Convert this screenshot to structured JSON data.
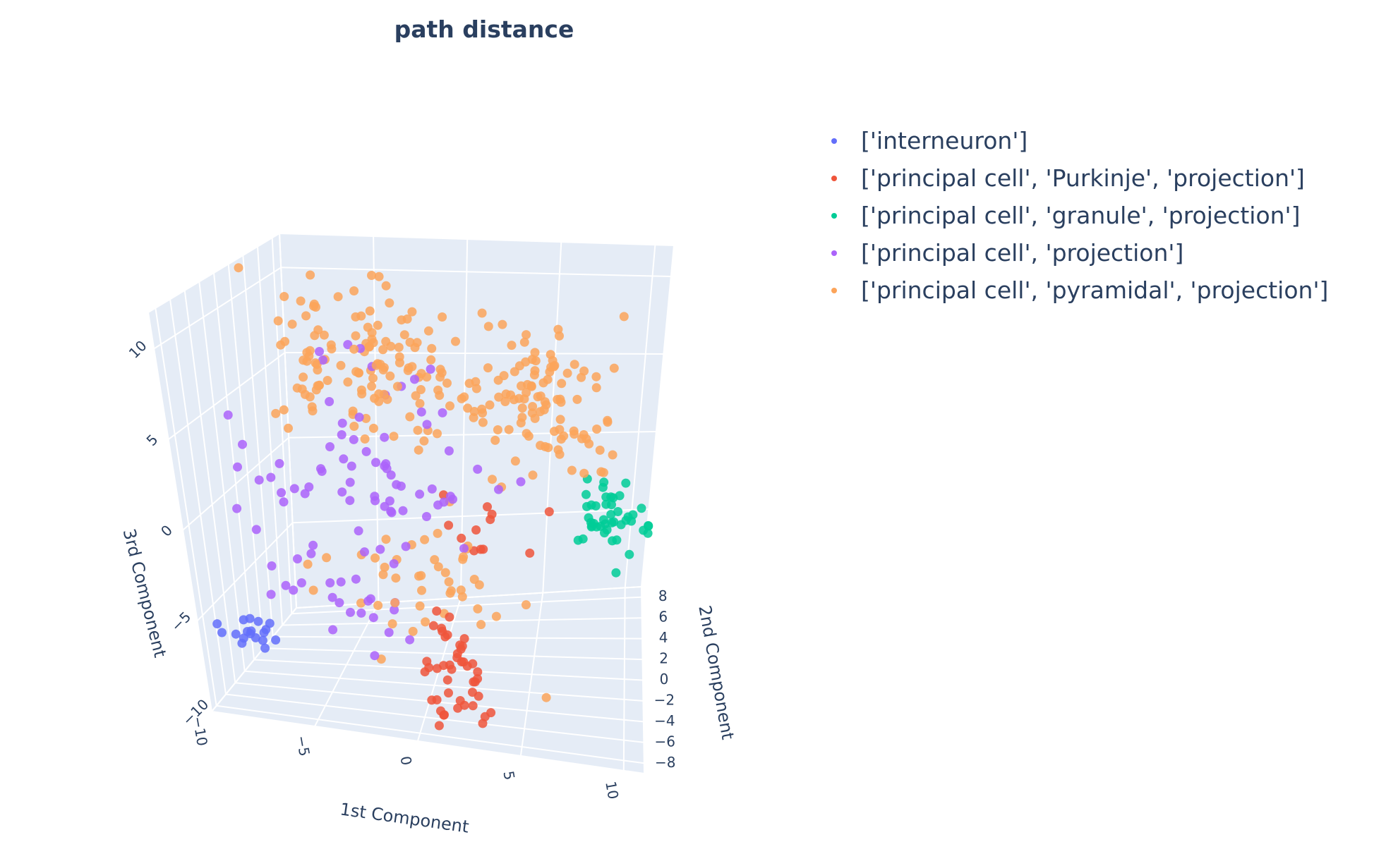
{
  "chart_data": {
    "type": "scatter",
    "projection": "3d",
    "title": "path distance",
    "axes": {
      "x": {
        "label": "1st Component",
        "range": [
          -10,
          11
        ],
        "ticks": [
          -10,
          -5,
          0,
          5,
          10
        ],
        "tick_labels": [
          "−10",
          "−5",
          "0",
          "5",
          "10"
        ]
      },
      "y": {
        "label": "2nd Component",
        "range": [
          -9,
          9
        ],
        "ticks": [
          -8,
          -6,
          -4,
          -2,
          0,
          2,
          4,
          6,
          8
        ],
        "tick_labels": [
          "−8",
          "−6",
          "−4",
          "−2",
          "0",
          "2",
          "4",
          "6",
          "8"
        ]
      },
      "z": {
        "label": "3rd Component",
        "range": [
          -10,
          12
        ],
        "ticks": [
          -10,
          -5,
          0,
          5,
          10
        ],
        "tick_labels": [
          "−10",
          "−5",
          "0",
          "5",
          "10"
        ]
      }
    },
    "grid": true,
    "background": "#e5ecf6",
    "legend_position": "top-right",
    "series": [
      {
        "name": "['interneuron']",
        "color": "#636efa",
        "clusters": [
          {
            "center": [
              -8,
              -7,
              -6
            ],
            "spread": [
              1.2,
              1.0,
              0.8
            ],
            "n": 18
          }
        ]
      },
      {
        "name": "['principal cell', 'Purkinje', 'projection']",
        "color": "#ef553b",
        "clusters": [
          {
            "center": [
              1.5,
              -6,
              -7
            ],
            "spread": [
              1.5,
              1.5,
              2.0
            ],
            "n": 45
          },
          {
            "center": [
              3,
              1,
              -1
            ],
            "spread": [
              2.5,
              2,
              1.5
            ],
            "n": 12
          }
        ]
      },
      {
        "name": "['principal cell', 'granule', 'projection']",
        "color": "#00cc96",
        "clusters": [
          {
            "center": [
              9,
              5,
              -3
            ],
            "spread": [
              1.5,
              2.0,
              1.5
            ],
            "n": 45
          }
        ]
      },
      {
        "name": "['principal cell', 'projection']",
        "color": "#ab63fa",
        "clusters": [
          {
            "center": [
              -3,
              0,
              2
            ],
            "spread": [
              5,
              3,
              4
            ],
            "n": 70
          },
          {
            "center": [
              -4,
              -6,
              -4
            ],
            "spread": [
              3,
              2,
              2
            ],
            "n": 25
          }
        ]
      },
      {
        "name": "['principal cell', 'pyramidal', 'projection']",
        "color": "#fca45a",
        "clusters": [
          {
            "center": [
              -4,
              3,
              7
            ],
            "spread": [
              3.5,
              3,
              3
            ],
            "n": 130
          },
          {
            "center": [
              5,
              4,
              5
            ],
            "spread": [
              3.5,
              3,
              3
            ],
            "n": 110
          },
          {
            "center": [
              0,
              -3,
              -3
            ],
            "spread": [
              4,
              3,
              2.5
            ],
            "n": 45
          }
        ]
      }
    ]
  }
}
